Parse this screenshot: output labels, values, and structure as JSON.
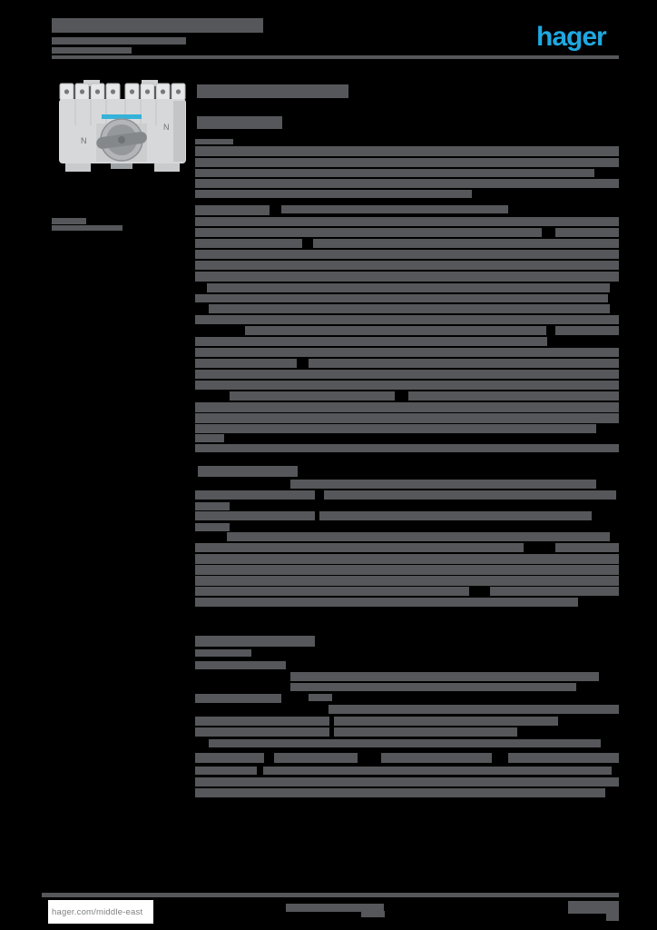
{
  "page": {
    "background_color": "#000000",
    "text_bar_color": "#56575a",
    "description": "Rasterized product datasheet page; body text illegible (rendered as gray bars)"
  },
  "brand": {
    "logo_text": "hager",
    "logo_color": "#1fa8e1"
  },
  "header": {
    "rule_color": "#58585a",
    "bars": [
      [
        57,
        20,
        233,
        16
      ],
      [
        57,
        41,
        148,
        8
      ],
      [
        57,
        52,
        88,
        7
      ],
      [
        57,
        61,
        625,
        4
      ]
    ]
  },
  "product_image": {
    "type": "modular-changeover-switch-photo",
    "n_label": "N",
    "accent": "#35b2d8"
  },
  "title_block": {
    "bars": [
      [
        217,
        93,
        167,
        15
      ],
      [
        217,
        128,
        94,
        14
      ]
    ]
  },
  "margin_note": {
    "bars": [
      [
        57,
        240,
        38,
        7
      ],
      [
        57,
        248,
        78,
        6
      ]
    ]
  },
  "content": {
    "bars": [
      [
        215,
        153,
        42,
        6
      ],
      [
        215,
        161,
        467,
        11
      ],
      [
        215,
        174,
        467,
        10
      ],
      [
        215,
        186,
        440,
        9
      ],
      [
        215,
        197,
        467,
        10
      ],
      [
        215,
        209,
        305,
        9
      ],
      [
        215,
        226,
        82,
        11
      ],
      [
        310,
        226,
        250,
        9
      ],
      [
        215,
        239,
        467,
        10
      ],
      [
        215,
        251,
        382,
        10
      ],
      [
        612,
        251,
        70,
        10
      ],
      [
        215,
        263,
        118,
        10
      ],
      [
        345,
        263,
        337,
        10
      ],
      [
        215,
        275,
        467,
        10
      ],
      [
        215,
        287,
        467,
        10
      ],
      [
        215,
        299,
        467,
        11
      ],
      [
        228,
        312,
        444,
        10
      ],
      [
        215,
        324,
        455,
        9
      ],
      [
        230,
        335,
        442,
        10
      ],
      [
        215,
        347,
        467,
        10
      ],
      [
        270,
        359,
        332,
        10
      ],
      [
        612,
        359,
        70,
        10
      ],
      [
        215,
        371,
        388,
        10
      ],
      [
        215,
        383,
        467,
        10
      ],
      [
        215,
        395,
        112,
        10
      ],
      [
        340,
        395,
        342,
        10
      ],
      [
        215,
        407,
        467,
        10
      ],
      [
        215,
        419,
        467,
        10
      ],
      [
        253,
        431,
        182,
        10
      ],
      [
        450,
        431,
        232,
        10
      ],
      [
        215,
        443,
        467,
        11
      ],
      [
        215,
        455,
        467,
        11
      ],
      [
        215,
        467,
        442,
        10
      ],
      [
        215,
        478,
        32,
        9
      ],
      [
        215,
        489,
        467,
        9
      ],
      [
        218,
        513,
        110,
        12
      ],
      [
        320,
        528,
        337,
        10
      ],
      [
        215,
        540,
        132,
        10
      ],
      [
        357,
        540,
        322,
        10
      ],
      [
        215,
        553,
        38,
        9
      ],
      [
        215,
        563,
        132,
        10
      ],
      [
        352,
        563,
        300,
        10
      ],
      [
        215,
        576,
        38,
        9
      ],
      [
        250,
        586,
        422,
        10
      ],
      [
        215,
        598,
        362,
        10
      ],
      [
        612,
        598,
        70,
        10
      ],
      [
        215,
        610,
        467,
        11
      ],
      [
        215,
        622,
        467,
        11
      ],
      [
        215,
        634,
        467,
        11
      ],
      [
        215,
        646,
        302,
        10
      ],
      [
        540,
        646,
        142,
        10
      ],
      [
        215,
        658,
        422,
        10
      ],
      [
        215,
        700,
        132,
        12
      ],
      [
        215,
        715,
        62,
        8
      ],
      [
        215,
        728,
        100,
        9
      ],
      [
        320,
        740,
        340,
        10
      ],
      [
        320,
        752,
        315,
        9
      ],
      [
        215,
        764,
        95,
        10
      ],
      [
        340,
        764,
        26,
        8
      ],
      [
        362,
        776,
        320,
        10
      ],
      [
        215,
        789,
        148,
        10
      ],
      [
        368,
        789,
        247,
        10
      ],
      [
        215,
        801,
        148,
        10
      ],
      [
        368,
        801,
        202,
        10
      ],
      [
        230,
        814,
        432,
        9
      ],
      [
        215,
        829,
        76,
        11
      ],
      [
        302,
        829,
        92,
        11
      ],
      [
        420,
        829,
        122,
        11
      ],
      [
        560,
        829,
        122,
        11
      ],
      [
        215,
        844,
        68,
        9
      ],
      [
        290,
        844,
        384,
        9
      ],
      [
        215,
        856,
        467,
        10
      ],
      [
        215,
        868,
        452,
        10
      ]
    ]
  },
  "footer": {
    "url": "hager.com/middle-east",
    "bars": [
      [
        46,
        983,
        636,
        5
      ],
      [
        315,
        995,
        108,
        9
      ],
      [
        398,
        1003,
        26,
        7
      ],
      [
        626,
        992,
        56,
        14
      ],
      [
        668,
        1006,
        14,
        8
      ]
    ]
  }
}
